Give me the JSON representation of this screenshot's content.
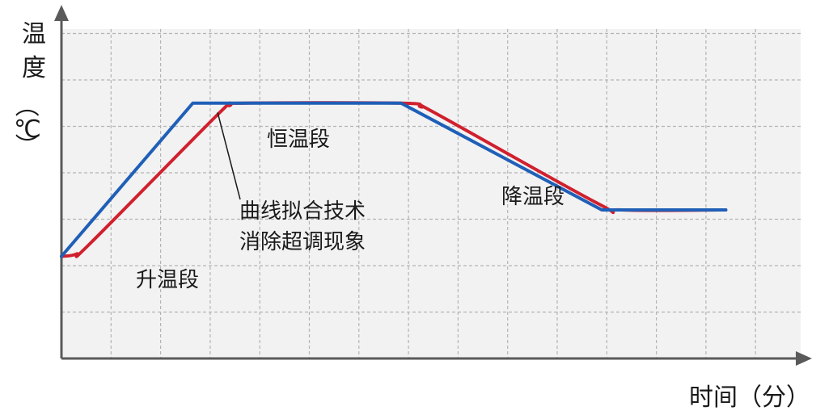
{
  "chart_data": {
    "type": "line",
    "ylabel_chars": [
      "温",
      "度",
      "（",
      "℃",
      "）"
    ],
    "xlabel": "时间（分）",
    "grid": true,
    "series": [
      {
        "color": "#1f5fb8",
        "points": [
          [
            0,
            2.2
          ],
          [
            2.65,
            5.5
          ],
          [
            6.85,
            5.5
          ],
          [
            10.9,
            3.2
          ],
          [
            13.4,
            3.2
          ]
        ]
      },
      {
        "color": "#d0202e",
        "curve": true,
        "points": [
          [
            0,
            2.2
          ],
          [
            0.3,
            2.25
          ],
          [
            0.6,
            2.5
          ],
          [
            3.1,
            5.2
          ],
          [
            3.4,
            5.45
          ],
          [
            3.7,
            5.5
          ],
          [
            6.85,
            5.5
          ],
          [
            7.25,
            5.42
          ],
          [
            7.6,
            5.25
          ],
          [
            10.8,
            3.35
          ],
          [
            11.3,
            3.2
          ],
          [
            13.4,
            3.2
          ]
        ]
      }
    ],
    "annotations": {
      "rise": "升温段",
      "constant": "恒温段",
      "fall": "降温段",
      "note_line1": "曲线拟合技术",
      "note_line2": "消除超调现象"
    }
  },
  "colors": {
    "grid_bg": "#f2f2f2",
    "grid_line": "#b4b4b4",
    "axis": "#5a5a5a"
  }
}
